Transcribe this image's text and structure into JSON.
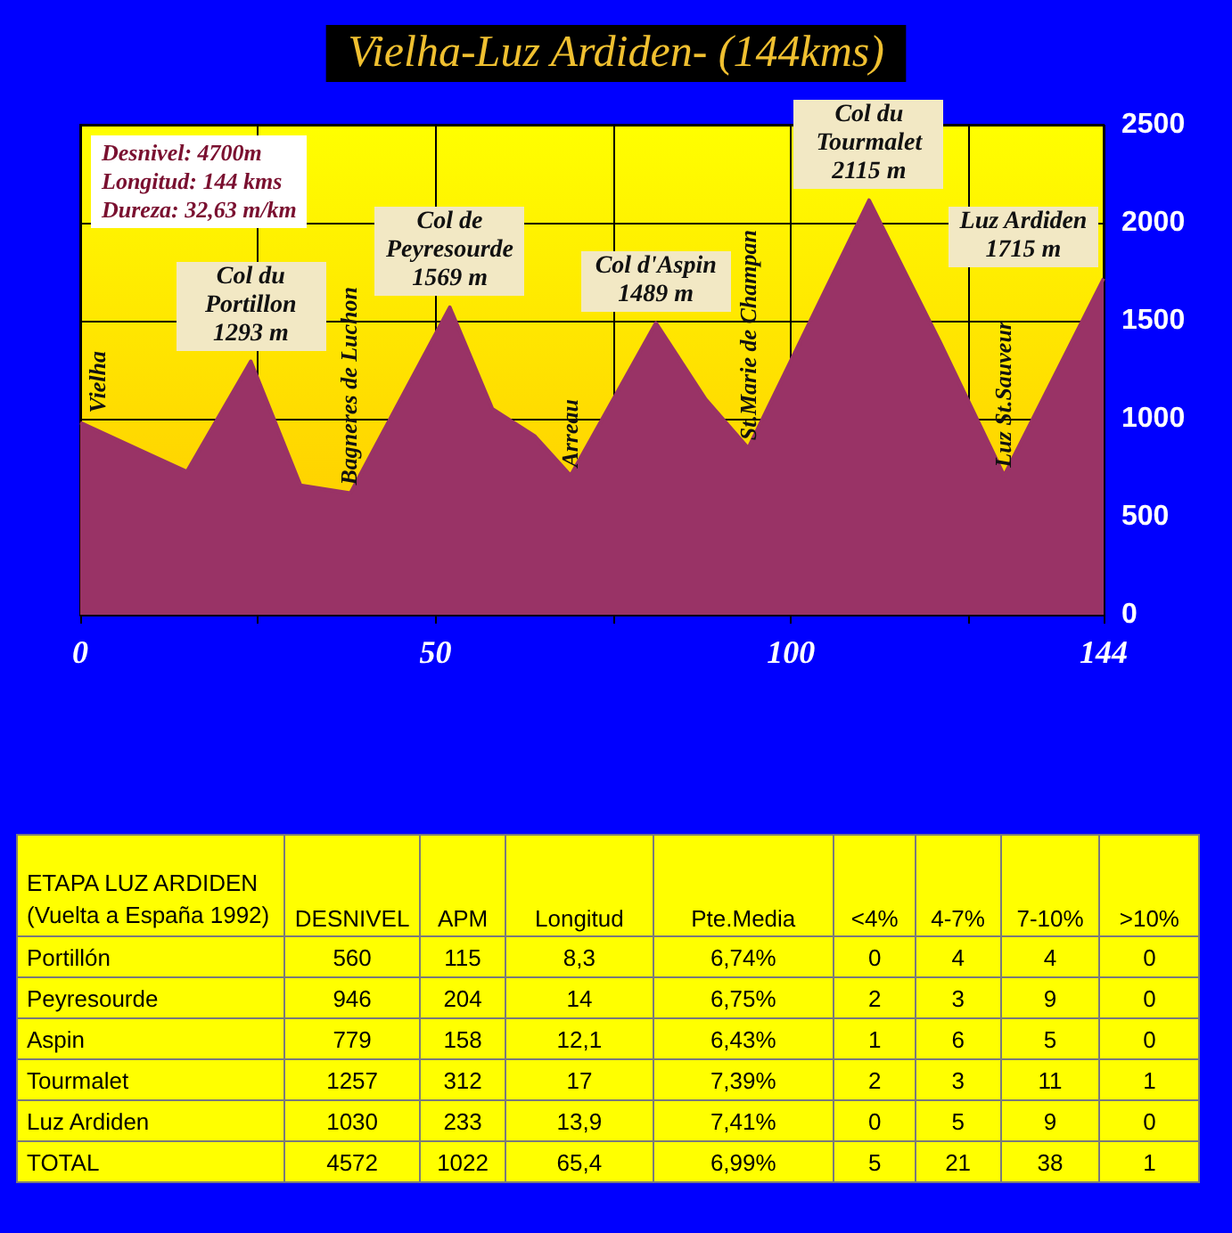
{
  "chart_data": [
    {
      "type": "area",
      "title": "Vielha-Luz Ardiden- (144kms)",
      "x": [
        0,
        15,
        24,
        31,
        38,
        52,
        58,
        64,
        69,
        81,
        88,
        94,
        111,
        121,
        130,
        144
      ],
      "values": [
        980,
        730,
        1293,
        660,
        620,
        1569,
        1050,
        910,
        710,
        1489,
        1100,
        850,
        2115,
        1390,
        710,
        1715
      ],
      "color": "#993366",
      "xlim": [
        0,
        144
      ],
      "xticks": [
        0,
        {
          "value": 25,
          "label": null
        },
        50,
        {
          "value": 75,
          "label": null
        },
        100,
        {
          "value": 125,
          "label": null
        },
        144
      ],
      "ylim": [
        0,
        2500
      ],
      "yticks": [
        0,
        500,
        1000,
        1500,
        2000,
        2500
      ],
      "grid": true,
      "annotations": [
        "Desnivel: 4700m",
        "Longitud: 144 kms",
        "Dureza: 32,63 m/km",
        {
          "text": "Vielha",
          "x": 0,
          "y": 980
        },
        {
          "text": "Col du Portillon 1293 m",
          "x": 24,
          "y": 1293
        },
        {
          "text": "Bagneres de Luchon",
          "x": 38,
          "y": 620
        },
        {
          "text": "Col de Peyresourde 1569 m",
          "x": 52,
          "y": 1569
        },
        {
          "text": "Arreau",
          "x": 69,
          "y": 710
        },
        {
          "text": "Col d'Aspin 1489 m",
          "x": 81,
          "y": 1489
        },
        {
          "text": "St.Marie de Champan",
          "x": 94,
          "y": 850
        },
        {
          "text": "Col du Tourmalet 2115 m",
          "x": 111,
          "y": 2115
        },
        {
          "text": "Luz St.Sauveur",
          "x": 130,
          "y": 710
        },
        {
          "text": "Luz Ardiden 1715 m",
          "x": 144,
          "y": 1715
        }
      ]
    },
    {
      "type": "other",
      "title": "ETAPA LUZ ARDIDEN (Vuelta a España 1992)",
      "categories": [
        "DESNIVEL",
        "APM",
        "Longitud",
        "Pte.Media",
        "<4%",
        "4-7%",
        "7-10%",
        ">10%"
      ],
      "y_categories": [
        "Portillón",
        "Peyresourde",
        "Aspin",
        "Tourmalet",
        "Luz Ardiden",
        "TOTAL"
      ],
      "cell_labels": [
        [
          "560",
          "115",
          "8,3",
          "6,74%",
          "0",
          "4",
          "4",
          "0"
        ],
        [
          "946",
          "204",
          "14",
          "6,75%",
          "2",
          "3",
          "9",
          "0"
        ],
        [
          "779",
          "158",
          "12,1",
          "6,43%",
          "1",
          "6",
          "5",
          "0"
        ],
        [
          "1257",
          "312",
          "17",
          "7,39%",
          "2",
          "3",
          "11",
          "1"
        ],
        [
          "1030",
          "233",
          "13,9",
          "7,41%",
          "0",
          "5",
          "9",
          "0"
        ],
        [
          "4572",
          "1022",
          "65,4",
          "6,99%",
          "5",
          "21",
          "38",
          "1"
        ]
      ]
    }
  ]
}
